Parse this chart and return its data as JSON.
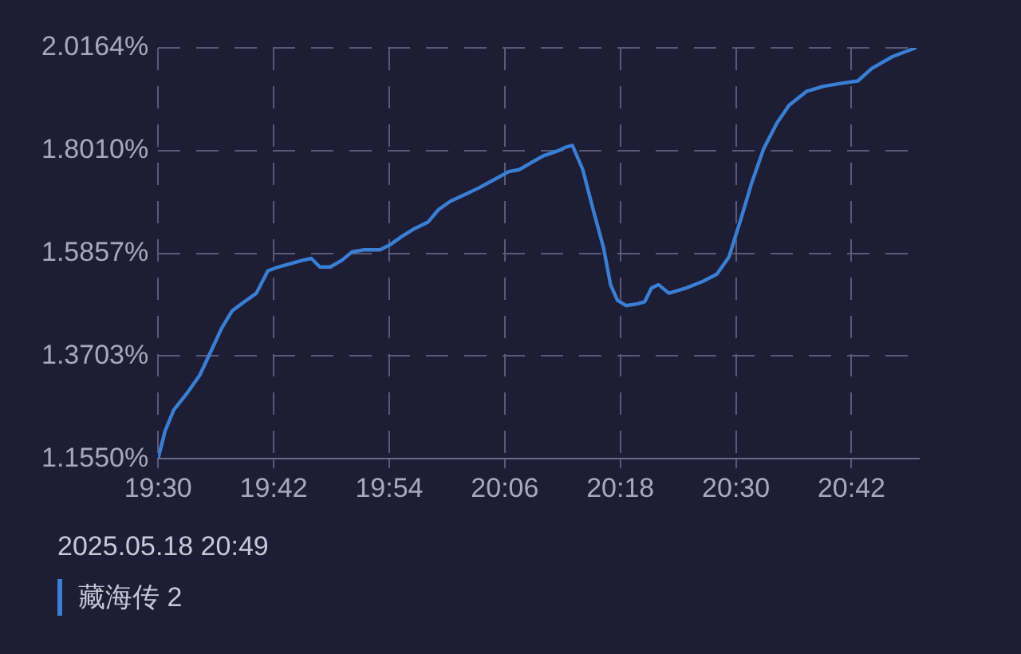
{
  "chart_data": {
    "type": "line",
    "annotations": [
      "2025.05.18 20:49",
      "藏海传 2"
    ],
    "x": [
      19.5,
      19.512,
      19.527,
      19.551,
      19.572,
      19.589,
      19.61,
      19.628,
      19.649,
      19.67,
      19.69,
      19.708,
      19.729,
      19.75,
      19.765,
      19.78,
      19.798,
      19.818,
      19.836,
      19.857,
      19.884,
      19.902,
      19.923,
      19.943,
      19.967,
      19.985,
      20.006,
      20.033,
      20.057,
      20.086,
      20.107,
      20.125,
      20.146,
      20.167,
      20.193,
      20.205,
      20.217,
      20.235,
      20.253,
      20.271,
      20.283,
      20.295,
      20.31,
      20.33,
      20.342,
      20.354,
      20.366,
      20.384,
      20.414,
      20.443,
      20.467,
      20.488,
      20.509,
      20.527,
      20.548,
      20.571,
      20.592,
      20.622,
      20.652,
      20.688,
      20.711,
      20.735,
      20.771,
      20.81
    ],
    "series": [
      {
        "color": "#3a7fd4",
        "values": [
          1.155,
          1.213,
          1.257,
          1.294,
          1.33,
          1.374,
          1.429,
          1.465,
          1.484,
          1.502,
          1.549,
          1.557,
          1.564,
          1.571,
          1.575,
          1.557,
          1.557,
          1.571,
          1.589,
          1.593,
          1.593,
          1.604,
          1.622,
          1.637,
          1.651,
          1.677,
          1.695,
          1.71,
          1.724,
          1.743,
          1.757,
          1.761,
          1.776,
          1.79,
          1.801,
          1.808,
          1.812,
          1.761,
          1.677,
          1.597,
          1.52,
          1.487,
          1.476,
          1.48,
          1.484,
          1.513,
          1.52,
          1.502,
          1.513,
          1.527,
          1.542,
          1.578,
          1.659,
          1.732,
          1.805,
          1.859,
          1.896,
          1.925,
          1.936,
          1.943,
          1.947,
          1.973,
          1.998,
          2.016
        ]
      }
    ],
    "xlim": [
      19.5,
      20.8167
    ],
    "xticks": [
      {
        "value": 19.5,
        "label": "19:30"
      },
      {
        "value": 19.7,
        "label": "19:42"
      },
      {
        "value": 19.9,
        "label": "19:54"
      },
      {
        "value": 20.1,
        "label": "20:06"
      },
      {
        "value": 20.3,
        "label": "20:18"
      },
      {
        "value": 20.5,
        "label": "20:30"
      },
      {
        "value": 20.7,
        "label": "20:42"
      }
    ],
    "ylim": [
      1.155,
      2.0164
    ],
    "yticks": [
      {
        "value": 1.155,
        "label": "1.1550%"
      },
      {
        "value": 1.3703,
        "label": "1.3703%"
      },
      {
        "value": 1.5857,
        "label": "1.5857%"
      },
      {
        "value": 1.801,
        "label": "1.8010%"
      },
      {
        "value": 2.0164,
        "label": "2.0164%"
      }
    ],
    "grid": true,
    "marker": "none",
    "line_style": "solid"
  }
}
